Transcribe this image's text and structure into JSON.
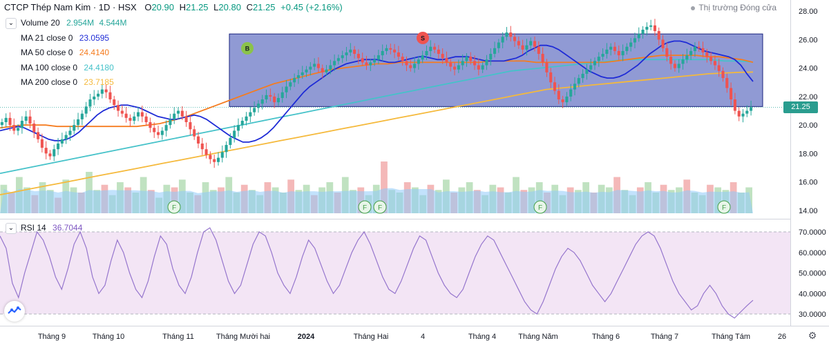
{
  "header": {
    "symbol": "CTCP Thép Nam Kim · 1D · HSX",
    "open_label": "O",
    "open": "20.90",
    "high_label": "H",
    "high": "21.25",
    "low_label": "L",
    "low": "20.80",
    "close_label": "C",
    "close": "21.25",
    "change": "+0.45 (+2.16%)",
    "market_status": "Thị trường Đóng cửa"
  },
  "indicators": {
    "volume": {
      "label": "Volume 20",
      "v1": "2.954M",
      "v2": "4.544M"
    },
    "ma21": {
      "label": "MA 21 close 0",
      "value": "23.0595",
      "color": "#1e2bd6"
    },
    "ma50": {
      "label": "MA 50 close 0",
      "value": "24.4140",
      "color": "#f57c1f"
    },
    "ma100": {
      "label": "MA 100 close 0",
      "value": "24.4180",
      "color": "#45c2c9"
    },
    "ma200": {
      "label": "MA 200 close 0",
      "value": "23.7185",
      "color": "#f5b93b"
    },
    "rsi": {
      "label": "RSI 14",
      "value": "36.7044",
      "color": "#9575cd"
    }
  },
  "last_price": "21.25",
  "colors": {
    "up": "#26a69a",
    "down": "#ef5350",
    "box": "#3f51b5",
    "rsi_band": "#e8d9ef"
  },
  "markers": {
    "buy": "B",
    "sell": "S",
    "flag": "F"
  },
  "chart_data": {
    "type": "candlestick",
    "price_axis": {
      "ticks": [
        "28.00",
        "26.00",
        "24.00",
        "22.00",
        "20.00",
        "18.00",
        "16.00",
        "14.00"
      ],
      "ylim": [
        13.8,
        28.3
      ]
    },
    "rsi_axis": {
      "ticks": [
        "70.0000",
        "60.0000",
        "50.0000",
        "40.0000",
        "30.0000"
      ],
      "upper": 70,
      "lower": 30
    },
    "x_ticks": [
      "Tháng 9",
      "Tháng 10",
      "Tháng 11",
      "Tháng Mười hai",
      "2024",
      "Tháng Hai",
      "4",
      "Tháng 4",
      "Tháng Năm",
      "Tháng 6",
      "Tháng 7",
      "Tháng Tám",
      "26"
    ],
    "trading_range": {
      "low": 21.3,
      "high": 26.4
    },
    "last_close": 21.25,
    "close_series": [
      20.2,
      20.5,
      20.0,
      19.6,
      19.8,
      20.3,
      20.6,
      20.1,
      19.5,
      19.0,
      18.4,
      18.0,
      17.8,
      18.3,
      18.7,
      19.0,
      19.3,
      19.6,
      20.0,
      20.4,
      20.8,
      21.3,
      21.8,
      22.0,
      22.2,
      22.5,
      22.3,
      21.8,
      21.4,
      21.0,
      20.8,
      20.5,
      20.3,
      20.6,
      20.9,
      20.6,
      20.2,
      19.8,
      19.5,
      19.3,
      19.6,
      20.0,
      20.4,
      20.8,
      21.0,
      20.6,
      20.2,
      19.7,
      19.2,
      18.7,
      18.3,
      17.9,
      17.6,
      17.4,
      17.7,
      18.1,
      18.6,
      19.1,
      19.6,
      20.0,
      20.3,
      20.6,
      20.9,
      21.2,
      21.5,
      21.8,
      22.1,
      22.0,
      21.6,
      21.9,
      22.3,
      22.7,
      23.0,
      23.3,
      23.5,
      23.7,
      23.9,
      24.1,
      24.3,
      24.0,
      23.7,
      23.9,
      24.2,
      24.5,
      24.7,
      24.9,
      25.1,
      25.3,
      25.0,
      24.7,
      24.4,
      24.2,
      24.4,
      24.6,
      24.9,
      25.2,
      25.4,
      25.3,
      25.1,
      24.8,
      24.5,
      24.2,
      24.0,
      24.3,
      24.6,
      24.9,
      25.2,
      25.5,
      25.3,
      25.0,
      24.7,
      24.4,
      24.1,
      23.9,
      24.2,
      24.5,
      24.8,
      24.5,
      24.2,
      23.9,
      24.2,
      24.6,
      25.0,
      25.4,
      25.8,
      26.2,
      26.5,
      26.2,
      25.9,
      25.6,
      25.3,
      25.6,
      25.9,
      25.5,
      25.0,
      24.4,
      23.7,
      23.0,
      22.4,
      21.8,
      21.6,
      22.0,
      22.5,
      22.9,
      23.3,
      23.6,
      23.9,
      24.2,
      24.5,
      24.8,
      25.0,
      25.3,
      25.5,
      25.2,
      24.9,
      25.2,
      25.5,
      25.8,
      26.1,
      26.4,
      26.7,
      26.9,
      27.0,
      26.6,
      26.0,
      25.4,
      24.8,
      24.3,
      24.0,
      24.3,
      24.6,
      24.9,
      25.2,
      25.5,
      25.4,
      25.1,
      24.8,
      24.5,
      24.2,
      23.8,
      23.3,
      22.6,
      21.8,
      21.0,
      20.6,
      20.8,
      21.0,
      21.25
    ],
    "ma21_series": [
      19.6,
      19.7,
      19.8,
      19.9,
      19.8,
      19.6,
      19.4,
      19.2,
      19.0,
      18.9,
      18.9,
      19.0,
      19.2,
      19.5,
      19.9,
      20.3,
      20.7,
      21.0,
      21.2,
      21.3,
      21.4,
      21.4,
      21.3,
      21.2,
      21.0,
      20.8,
      20.6,
      20.5,
      20.4,
      20.4,
      20.5,
      20.6,
      20.7,
      20.6,
      20.4,
      20.1,
      19.8,
      19.5,
      19.2,
      19.0,
      18.8,
      18.8,
      18.9,
      19.1,
      19.4,
      19.8,
      20.3,
      20.8,
      21.3,
      21.8,
      22.3,
      22.7,
      23.0,
      23.3,
      23.6,
      23.9,
      24.1,
      24.3,
      24.4,
      24.5,
      24.6,
      24.6,
      24.6,
      24.5,
      24.4,
      24.4,
      24.5,
      24.6,
      24.7,
      24.8,
      24.8,
      24.7,
      24.6,
      24.6,
      24.7,
      24.8,
      24.8,
      24.8,
      24.7,
      24.6,
      24.5,
      24.5,
      24.5,
      24.5,
      24.6,
      24.7,
      24.9,
      25.2,
      25.4,
      25.6,
      25.6,
      25.5,
      25.3,
      25.0,
      24.7,
      24.4,
      24.1,
      23.8,
      23.6,
      23.4,
      23.3,
      23.3,
      23.4,
      23.6,
      23.9,
      24.2,
      24.6,
      25.0,
      25.3,
      25.6,
      25.8,
      25.9,
      25.9,
      25.8,
      25.6,
      25.4,
      25.2,
      25.1,
      25.0,
      24.9,
      24.8,
      24.6,
      24.2,
      23.6,
      23.06
    ],
    "ma50_series": [
      19.8,
      19.9,
      20.0,
      20.0,
      20.0,
      19.9,
      19.9,
      19.9,
      19.9,
      19.9,
      19.9,
      19.9,
      19.9,
      20.0,
      20.1,
      20.3,
      20.5,
      20.8,
      21.1,
      21.4,
      21.7,
      22.0,
      22.3,
      22.6,
      22.9,
      23.1,
      23.3,
      23.5,
      23.7,
      23.9,
      24.0,
      24.1,
      24.2,
      24.3,
      24.3,
      24.4,
      24.4,
      24.4,
      24.4,
      24.4,
      24.4,
      24.4,
      24.4,
      24.5,
      24.5,
      24.5,
      24.5,
      24.4,
      24.4,
      24.4,
      24.4,
      24.4,
      24.4,
      24.4,
      24.5,
      24.6,
      24.7,
      24.8,
      24.9,
      24.9,
      24.9,
      24.9,
      24.8,
      24.8,
      24.7,
      24.6,
      24.41
    ],
    "ma100_series": [
      16.6,
      16.8,
      17.0,
      17.2,
      17.4,
      17.6,
      17.8,
      18.0,
      18.2,
      18.4,
      18.6,
      18.8,
      19.0,
      19.2,
      19.4,
      19.6,
      19.8,
      20.0,
      20.2,
      20.4,
      20.6,
      20.8,
      21.0,
      21.2,
      21.4,
      21.6,
      21.8,
      22.0,
      22.2,
      22.4,
      22.6,
      22.8,
      23.0,
      23.2,
      23.4,
      23.6,
      23.8,
      23.9,
      24.0,
      24.1,
      24.2,
      24.3,
      24.4,
      24.5,
      24.6,
      24.6,
      24.6,
      24.6,
      24.6,
      24.6,
      24.6,
      24.5,
      24.5,
      24.42
    ],
    "ma200_series": [
      15.1,
      15.3,
      15.5,
      15.7,
      15.9,
      16.1,
      16.3,
      16.5,
      16.7,
      16.9,
      17.1,
      17.3,
      17.5,
      17.7,
      17.9,
      18.1,
      18.3,
      18.5,
      18.7,
      18.9,
      19.1,
      19.3,
      19.5,
      19.7,
      19.9,
      20.1,
      20.3,
      20.5,
      20.7,
      20.9,
      21.1,
      21.3,
      21.5,
      21.7,
      21.9,
      22.1,
      22.3,
      22.5,
      22.6,
      22.7,
      22.8,
      22.9,
      23.0,
      23.1,
      23.2,
      23.3,
      23.4,
      23.5,
      23.6,
      23.65,
      23.7,
      23.72
    ],
    "volume_relative": [
      0.55,
      0.4,
      0.7,
      0.5,
      0.35,
      0.6,
      0.45,
      0.3,
      0.65,
      0.5,
      0.4,
      0.8,
      0.45,
      0.55,
      0.35,
      0.6,
      0.5,
      0.4,
      0.7,
      0.45,
      0.3,
      0.55,
      0.5,
      0.65,
      0.4,
      0.35,
      0.6,
      0.45,
      0.5,
      0.7,
      0.4,
      0.55,
      0.45,
      0.35,
      0.6,
      0.5,
      0.4,
      0.65,
      0.45,
      0.55,
      0.35,
      0.5,
      0.6,
      0.4,
      0.7,
      0.45,
      0.5,
      0.35,
      0.55,
      1.0,
      0.45,
      0.4,
      0.6,
      0.5,
      0.35,
      0.55,
      0.45,
      0.65,
      0.4,
      0.5,
      0.6,
      0.45,
      0.35,
      0.55,
      0.5,
      0.4,
      0.7,
      0.45,
      0.5,
      0.6,
      0.4,
      0.55,
      0.35,
      0.5,
      0.45,
      0.6,
      0.4,
      0.55,
      0.5,
      0.7,
      0.45,
      0.35,
      0.5,
      0.6,
      0.4,
      0.55,
      0.45,
      0.5,
      0.65,
      0.4,
      0.35,
      0.55,
      0.5,
      0.45,
      0.6,
      0.4,
      0.5
    ],
    "rsi_series": [
      68,
      62,
      45,
      38,
      50,
      60,
      70,
      66,
      58,
      48,
      42,
      52,
      64,
      70,
      62,
      48,
      40,
      44,
      56,
      66,
      60,
      50,
      42,
      38,
      46,
      58,
      68,
      64,
      52,
      44,
      40,
      48,
      60,
      70,
      72,
      66,
      56,
      46,
      40,
      44,
      54,
      64,
      70,
      68,
      60,
      50,
      44,
      40,
      48,
      58,
      66,
      62,
      54,
      46,
      40,
      44,
      52,
      60,
      66,
      70,
      64,
      56,
      48,
      42,
      40,
      46,
      54,
      62,
      68,
      66,
      58,
      50,
      44,
      40,
      38,
      42,
      50,
      58,
      64,
      68,
      66,
      60,
      54,
      48,
      42,
      36,
      32,
      30,
      36,
      44,
      52,
      58,
      62,
      60,
      56,
      50,
      44,
      40,
      36,
      40,
      46,
      52,
      58,
      64,
      68,
      70,
      68,
      62,
      54,
      46,
      40,
      36,
      32,
      34,
      40,
      44,
      40,
      34,
      30,
      28,
      31,
      34,
      36.7
    ]
  }
}
